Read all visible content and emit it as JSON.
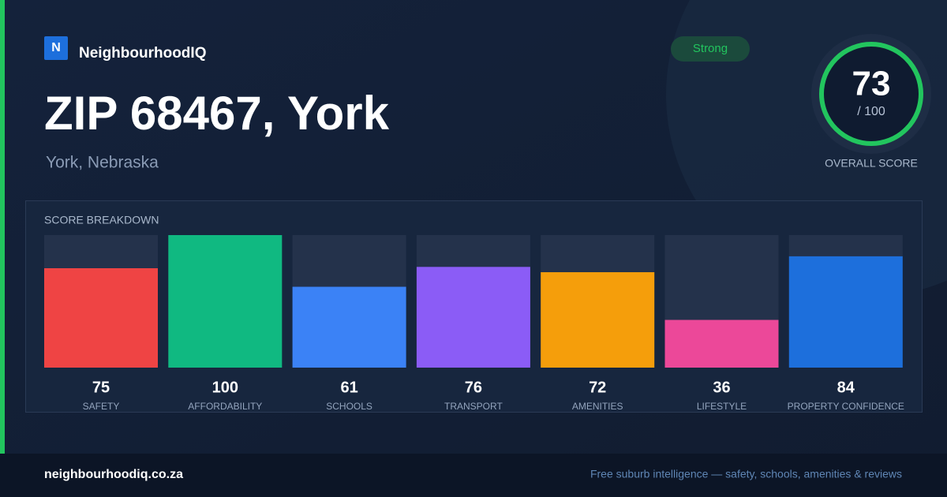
{
  "brand": {
    "logo": "N",
    "name": "NeighbourhoodIQ"
  },
  "header": {
    "title": "ZIP 68467, York",
    "subtitle": "York, Nebraska",
    "badge": "Strong"
  },
  "score": {
    "value": 73,
    "max_label": "/ 100",
    "label": "OVERALL SCORE"
  },
  "chart_data": {
    "type": "bar",
    "title": "SCORE BREAKDOWN",
    "categories": [
      "SAFETY",
      "AFFORDABILITY",
      "SCHOOLS",
      "TRANSPORT",
      "AMENITIES",
      "LIFESTYLE",
      "PROPERTY CONFIDENCE"
    ],
    "values": [
      75,
      100,
      61,
      76,
      72,
      36,
      84
    ],
    "colors": [
      "#ef4444",
      "#10b981",
      "#3b82f6",
      "#8b5cf6",
      "#f59e0b",
      "#ec4899",
      "#1d6fdc"
    ],
    "ylim": [
      0,
      100
    ]
  },
  "footer": {
    "site": "neighbourhoodiq.co.za",
    "tagline": "Free suburb intelligence — safety, schools, amenities & reviews"
  }
}
